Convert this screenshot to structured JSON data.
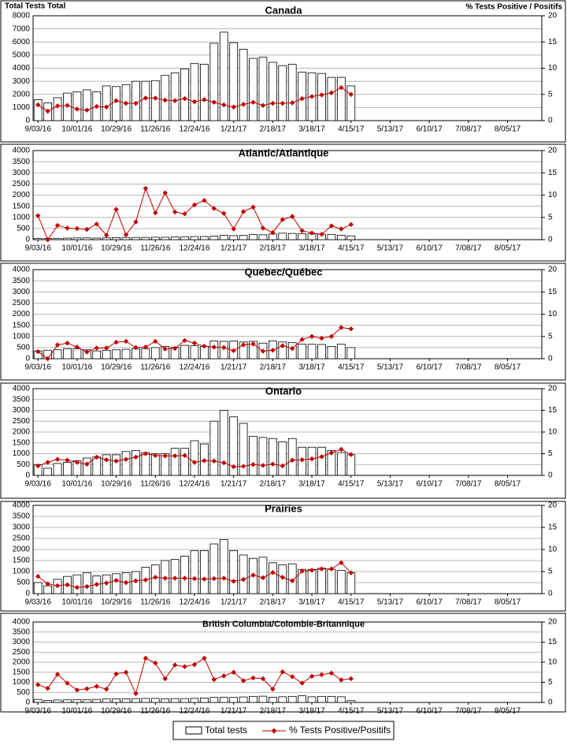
{
  "chart_data": [
    {
      "type": "bar",
      "title": "Canada",
      "y_label": "Total Tests Total",
      "y2_label": "% Tests Positive / Positifs",
      "grid": true,
      "categories": [
        "9/03/16",
        null,
        null,
        null,
        "10/01/16",
        null,
        null,
        null,
        "10/29/16",
        null,
        null,
        null,
        "11/26/16",
        null,
        null,
        null,
        "12/24/16",
        null,
        null,
        null,
        "1/21/17",
        null,
        null,
        null,
        "2/18/17",
        null,
        null,
        null,
        "3/18/17",
        null,
        null,
        null,
        "4/15/17",
        null,
        null,
        null,
        "5/13/17",
        null,
        null,
        null,
        "6/10/17",
        null,
        null,
        null,
        "7/08/17",
        null,
        null,
        null,
        "8/05/17",
        null,
        null,
        null
      ],
      "ylim": [
        0,
        8000
      ],
      "yticks": [
        0,
        1000,
        2000,
        3000,
        4000,
        5000,
        6000,
        7000,
        8000
      ],
      "y2lim": [
        0,
        20
      ],
      "y2ticks": [
        0,
        5,
        10,
        15,
        20
      ],
      "series": [
        {
          "name": "Total tests",
          "color": "#ffffff",
          "values": [
            1600,
            1350,
            1750,
            2100,
            2200,
            2350,
            2200,
            2650,
            2600,
            2750,
            3000,
            3000,
            3050,
            3450,
            3650,
            3950,
            4350,
            4300,
            5900,
            6750,
            5950,
            5450,
            4750,
            4850,
            4450,
            4200,
            4300,
            3700,
            3650,
            3600,
            3300,
            3300,
            2650,
            null,
            null,
            null,
            null,
            null,
            null,
            null,
            null,
            null,
            null,
            null,
            null,
            null,
            null,
            null,
            null,
            null,
            null,
            null
          ]
        },
        {
          "name": "% Tests Positive/Positifs",
          "color": "#c00000",
          "axis": "y2",
          "values": [
            3.0,
            1.8,
            2.8,
            2.9,
            2.2,
            2.0,
            2.7,
            2.6,
            3.8,
            3.3,
            3.3,
            4.3,
            4.3,
            3.9,
            3.8,
            4.2,
            3.6,
            4.0,
            3.5,
            3.0,
            2.6,
            3.1,
            3.5,
            2.9,
            3.3,
            3.3,
            3.4,
            4.2,
            4.6,
            4.9,
            5.3,
            6.3,
            5.0,
            null,
            null,
            null,
            null,
            null,
            null,
            null,
            null,
            null,
            null,
            null,
            null,
            null,
            null,
            null,
            null,
            null,
            null,
            null
          ]
        }
      ]
    },
    {
      "type": "bar",
      "title": "Atlantic/Atlantique",
      "grid": true,
      "categories": [
        "9/03/16",
        null,
        null,
        null,
        "10/01/16",
        null,
        null,
        null,
        "10/29/16",
        null,
        null,
        null,
        "11/26/16",
        null,
        null,
        null,
        "12/24/16",
        null,
        null,
        null,
        "1/21/17",
        null,
        null,
        null,
        "2/18/17",
        null,
        null,
        null,
        "3/18/17",
        null,
        null,
        null,
        "4/15/17",
        null,
        null,
        null,
        "5/13/17",
        null,
        null,
        null,
        "6/10/17",
        null,
        null,
        null,
        "7/08/17",
        null,
        null,
        null,
        "8/05/17",
        null,
        null,
        null
      ],
      "ylim": [
        0,
        4000
      ],
      "yticks": [
        0,
        500,
        1000,
        1500,
        2000,
        2500,
        3000,
        3500,
        4000
      ],
      "y2lim": [
        0,
        20
      ],
      "y2ticks": [
        0,
        5,
        10,
        15,
        20
      ],
      "series": [
        {
          "color": "#ffffff",
          "values": [
            60,
            50,
            60,
            70,
            80,
            80,
            70,
            80,
            90,
            100,
            100,
            100,
            110,
            110,
            120,
            130,
            140,
            140,
            160,
            200,
            180,
            190,
            230,
            220,
            250,
            290,
            280,
            270,
            260,
            250,
            230,
            200,
            170,
            null,
            null,
            null,
            null,
            null,
            null,
            null,
            null,
            null,
            null,
            null,
            null,
            null,
            null,
            null,
            null,
            null,
            null,
            null
          ]
        },
        {
          "color": "#c00000",
          "axis": "y2",
          "values": [
            5.4,
            0,
            3.2,
            2.6,
            2.5,
            2.3,
            3.5,
            1.0,
            6.8,
            1.1,
            4.0,
            11.5,
            6.0,
            10.5,
            6.2,
            5.8,
            7.8,
            8.8,
            7.0,
            5.9,
            2.4,
            6.3,
            7.3,
            2.6,
            1.6,
            4.5,
            5.2,
            2.0,
            1.5,
            1.2,
            3.1,
            2.4,
            3.4,
            null,
            null,
            null,
            null,
            null,
            null,
            null,
            null,
            null,
            null,
            null,
            null,
            null,
            null,
            null,
            null,
            null,
            null,
            null
          ]
        }
      ]
    },
    {
      "type": "bar",
      "title": "Quebec/Québec",
      "grid": true,
      "categories": [
        "9/03/16",
        null,
        null,
        null,
        "10/01/16",
        null,
        null,
        null,
        "10/29/16",
        null,
        null,
        null,
        "11/26/16",
        null,
        null,
        null,
        "12/24/16",
        null,
        null,
        null,
        "1/21/17",
        null,
        null,
        null,
        "2/18/17",
        null,
        null,
        null,
        "3/18/17",
        null,
        null,
        null,
        "4/15/17",
        null,
        null,
        null,
        "5/13/17",
        null,
        null,
        null,
        "6/10/17",
        null,
        null,
        null,
        "7/08/17",
        null,
        null,
        null,
        "8/05/17",
        null,
        null,
        null
      ],
      "ylim": [
        0,
        4000
      ],
      "yticks": [
        0,
        500,
        1000,
        1500,
        2000,
        2500,
        3000,
        3500,
        4000
      ],
      "y2lim": [
        0,
        20
      ],
      "y2ticks": [
        0,
        5,
        10,
        15,
        20
      ],
      "series": [
        {
          "color": "#ffffff",
          "values": [
            350,
            380,
            400,
            450,
            450,
            400,
            350,
            380,
            400,
            420,
            450,
            450,
            500,
            550,
            520,
            600,
            580,
            550,
            800,
            780,
            800,
            750,
            780,
            700,
            800,
            750,
            720,
            650,
            650,
            640,
            550,
            650,
            500,
            null,
            null,
            null,
            null,
            null,
            null,
            null,
            null,
            null,
            null,
            null,
            null,
            null,
            null,
            null,
            null,
            null,
            null,
            null
          ]
        },
        {
          "color": "#c00000",
          "axis": "y2",
          "values": [
            1.6,
            0,
            3.1,
            3.5,
            2.6,
            1.5,
            2.4,
            2.4,
            3.7,
            3.9,
            2.5,
            2.6,
            3.9,
            2.2,
            2.3,
            4.1,
            3.5,
            2.8,
            2.6,
            2.5,
            1.8,
            3.1,
            3.3,
            1.7,
            1.9,
            2.9,
            2.3,
            4.3,
            5.0,
            4.6,
            5.0,
            7.0,
            6.7,
            null,
            null,
            null,
            null,
            null,
            null,
            null,
            null,
            null,
            null,
            null,
            null,
            null,
            null,
            null,
            null,
            null,
            null,
            null
          ]
        }
      ]
    },
    {
      "type": "bar",
      "title": "Ontario",
      "grid": true,
      "categories": [
        "9/03/16",
        null,
        null,
        null,
        "10/01/16",
        null,
        null,
        null,
        "10/29/16",
        null,
        null,
        null,
        "11/26/16",
        null,
        null,
        null,
        "12/24/16",
        null,
        null,
        null,
        "1/21/17",
        null,
        null,
        null,
        "2/18/17",
        null,
        null,
        null,
        "3/18/17",
        null,
        null,
        null,
        "4/15/17",
        null,
        null,
        null,
        "5/13/17",
        null,
        null,
        null,
        "6/10/17",
        null,
        null,
        null,
        "7/08/17",
        null,
        null,
        null,
        "8/05/17",
        null,
        null,
        null
      ],
      "ylim": [
        0,
        4000
      ],
      "yticks": [
        0,
        500,
        1000,
        1500,
        2000,
        2500,
        3000,
        3500,
        4000
      ],
      "y2lim": [
        0,
        20
      ],
      "y2ticks": [
        0,
        5,
        10,
        15,
        20
      ],
      "series": [
        {
          "color": "#ffffff",
          "values": [
            500,
            330,
            550,
            600,
            680,
            800,
            850,
            950,
            950,
            1100,
            1150,
            1050,
            1000,
            1000,
            1250,
            1250,
            1600,
            1450,
            2500,
            3000,
            2700,
            2400,
            1800,
            1750,
            1700,
            1550,
            1700,
            1300,
            1300,
            1300,
            1150,
            1050,
            950,
            null,
            null,
            null,
            null,
            null,
            null,
            null,
            null,
            null,
            null,
            null,
            null,
            null,
            null,
            null,
            null,
            null,
            null,
            null
          ]
        },
        {
          "color": "#c00000",
          "axis": "y2",
          "values": [
            2.2,
            3.0,
            3.7,
            3.5,
            3.0,
            2.6,
            4.2,
            3.6,
            3.3,
            3.7,
            4.2,
            5.0,
            4.6,
            4.5,
            4.5,
            4.6,
            3.0,
            3.4,
            3.3,
            2.9,
            2.0,
            2.1,
            2.5,
            2.3,
            2.6,
            2.2,
            3.5,
            3.6,
            3.8,
            4.3,
            5.2,
            6.0,
            4.8,
            null,
            null,
            null,
            null,
            null,
            null,
            null,
            null,
            null,
            null,
            null,
            null,
            null,
            null,
            null,
            null,
            null,
            null,
            null
          ]
        }
      ]
    },
    {
      "type": "bar",
      "title": "Prairies",
      "grid": true,
      "categories": [
        "9/03/16",
        null,
        null,
        null,
        "10/01/16",
        null,
        null,
        null,
        "10/29/16",
        null,
        null,
        null,
        "11/26/16",
        null,
        null,
        null,
        "12/24/16",
        null,
        null,
        null,
        "1/21/17",
        null,
        null,
        null,
        "2/18/17",
        null,
        null,
        null,
        "3/18/17",
        null,
        null,
        null,
        "4/15/17",
        null,
        null,
        null,
        "5/13/17",
        null,
        null,
        null,
        "6/10/17",
        null,
        null,
        null,
        "7/08/17",
        null,
        null,
        null,
        "8/05/17",
        null,
        null,
        null
      ],
      "ylim": [
        0,
        4000
      ],
      "yticks": [
        0,
        500,
        1000,
        1500,
        2000,
        2500,
        3000,
        3500,
        4000
      ],
      "y2lim": [
        0,
        20
      ],
      "y2ticks": [
        0,
        5,
        10,
        15,
        20
      ],
      "series": [
        {
          "color": "#ffffff",
          "values": [
            500,
            350,
            650,
            780,
            850,
            950,
            800,
            850,
            900,
            950,
            1000,
            1200,
            1300,
            1500,
            1550,
            1700,
            1950,
            1950,
            2250,
            2450,
            1950,
            1750,
            1600,
            1650,
            1400,
            1300,
            1350,
            1100,
            1100,
            1150,
            1100,
            1050,
            950,
            null,
            null,
            null,
            null,
            null,
            null,
            null,
            null,
            null,
            null,
            null,
            null,
            null,
            null,
            null,
            null,
            null,
            null,
            null
          ]
        },
        {
          "color": "#c00000",
          "axis": "y2",
          "values": [
            3.9,
            2.2,
            1.8,
            2.0,
            1.4,
            1.6,
            2.1,
            2.4,
            3.0,
            2.5,
            2.9,
            3.1,
            3.7,
            3.5,
            3.5,
            3.5,
            3.4,
            3.3,
            3.4,
            3.5,
            2.8,
            3.2,
            4.2,
            3.6,
            4.8,
            3.7,
            2.9,
            5.1,
            5.3,
            5.6,
            5.6,
            7.0,
            4.7,
            null,
            null,
            null,
            null,
            null,
            null,
            null,
            null,
            null,
            null,
            null,
            null,
            null,
            null,
            null,
            null,
            null,
            null,
            null
          ]
        }
      ]
    },
    {
      "type": "bar",
      "title": "British Columbia/Colombie-Britannique",
      "grid": true,
      "categories": [
        "9/03/16",
        null,
        null,
        null,
        "10/01/16",
        null,
        null,
        null,
        "10/29/16",
        null,
        null,
        null,
        "11/26/16",
        null,
        null,
        null,
        "12/24/16",
        null,
        null,
        null,
        "1/21/17",
        null,
        null,
        null,
        "2/18/17",
        null,
        null,
        null,
        "3/18/17",
        null,
        null,
        null,
        "4/15/17",
        null,
        null,
        null,
        "5/13/17",
        null,
        null,
        null,
        "6/10/17",
        null,
        null,
        null,
        "7/08/17",
        null,
        null,
        null,
        "8/05/17",
        null,
        null,
        null
      ],
      "ylim": [
        0,
        4000
      ],
      "yticks": [
        0,
        500,
        1000,
        1500,
        2000,
        2500,
        3000,
        3500,
        4000
      ],
      "y2lim": [
        0,
        20
      ],
      "y2ticks": [
        0,
        5,
        10,
        15,
        20
      ],
      "series": [
        {
          "color": "#ffffff",
          "values": [
            150,
            100,
            120,
            130,
            140,
            130,
            150,
            170,
            180,
            180,
            190,
            200,
            200,
            180,
            190,
            190,
            200,
            220,
            250,
            260,
            250,
            270,
            300,
            310,
            260,
            280,
            300,
            330,
            280,
            300,
            300,
            280,
            90,
            null,
            null,
            null,
            null,
            null,
            null,
            null,
            null,
            null,
            null,
            null,
            null,
            null,
            null,
            null,
            null,
            null,
            null,
            null
          ]
        },
        {
          "color": "#c00000",
          "axis": "y2",
          "values": [
            4.4,
            3.5,
            7.0,
            4.8,
            3.1,
            3.4,
            4.0,
            3.3,
            7.1,
            7.5,
            2.2,
            11.0,
            9.8,
            5.9,
            9.3,
            8.9,
            9.4,
            11.0,
            5.7,
            6.6,
            7.5,
            5.4,
            6.1,
            5.9,
            3.3,
            7.6,
            6.4,
            4.8,
            6.5,
            6.9,
            7.3,
            5.6,
            5.9,
            null,
            null,
            null,
            null,
            null,
            null,
            null,
            null,
            null,
            null,
            null,
            null,
            null,
            null,
            null,
            null,
            null,
            null,
            null
          ]
        }
      ]
    }
  ]
}
